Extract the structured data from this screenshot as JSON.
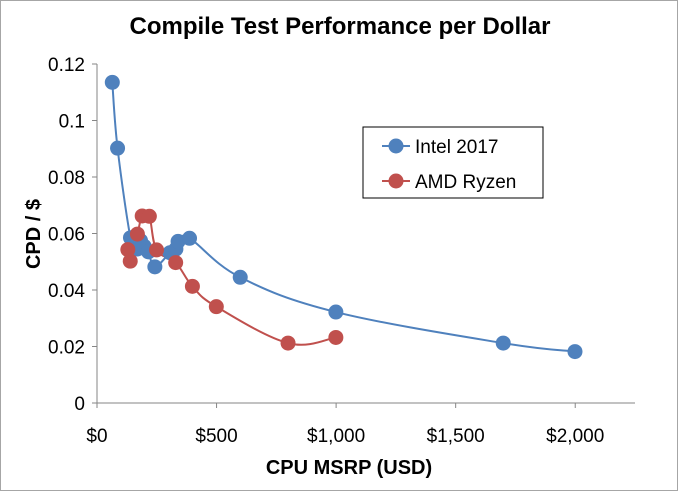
{
  "chart_data": {
    "type": "scatter",
    "title": "Compile Test Performance per Dollar",
    "xlabel": "CPU MSRP (USD)",
    "ylabel": "CPD / $",
    "xlim": [
      0,
      2250
    ],
    "ylim": [
      0,
      0.12
    ],
    "x_ticks": [
      0,
      500,
      1000,
      1500,
      2000
    ],
    "x_tick_labels": [
      "$0",
      "$500",
      "$1,000",
      "$1,500",
      "$2,000"
    ],
    "y_ticks": [
      0,
      0.02,
      0.04,
      0.06,
      0.08,
      0.1,
      0.12
    ],
    "y_tick_labels": [
      "0",
      "0.02",
      "0.04",
      "0.06",
      "0.08",
      "0.1",
      "0.12"
    ],
    "grid": false,
    "legend_position": "upper-right",
    "series": [
      {
        "name": "Intel 2017",
        "color": "#4f81bd",
        "line": "smooth",
        "points": [
          [
            64,
            0.1135
          ],
          [
            86,
            0.0902
          ],
          [
            140,
            0.0585
          ],
          [
            168,
            0.0545
          ],
          [
            182,
            0.0575
          ],
          [
            197,
            0.0555
          ],
          [
            215,
            0.0535
          ],
          [
            242,
            0.0482
          ],
          [
            305,
            0.0532
          ],
          [
            330,
            0.0545
          ],
          [
            339,
            0.0572
          ],
          [
            387,
            0.0583
          ],
          [
            599,
            0.0445
          ],
          [
            999,
            0.0322
          ],
          [
            1699,
            0.0212
          ],
          [
            1999,
            0.0182
          ]
        ]
      },
      {
        "name": "AMD Ryzen",
        "color": "#c0504d",
        "line": "smooth",
        "points": [
          [
            129,
            0.0543
          ],
          [
            139,
            0.0502
          ],
          [
            169,
            0.0598
          ],
          [
            189,
            0.0662
          ],
          [
            219,
            0.0661
          ],
          [
            249,
            0.0542
          ],
          [
            329,
            0.0497
          ],
          [
            399,
            0.0413
          ],
          [
            499,
            0.0341
          ],
          [
            799,
            0.0212
          ],
          [
            999,
            0.0232
          ]
        ]
      }
    ]
  }
}
